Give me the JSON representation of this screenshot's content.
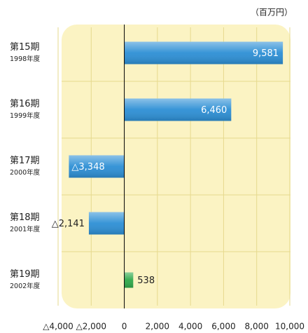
{
  "chart_data": {
    "type": "hbar",
    "unit_label": "（百万円）",
    "categories": [
      "第15期",
      "第16期",
      "第17期",
      "第18期",
      "第19期"
    ],
    "category_years": [
      "1998年度",
      "1999年度",
      "2000年度",
      "2001年度",
      "2002年度"
    ],
    "values": [
      9581,
      6460,
      -3348,
      -2141,
      538
    ],
    "value_labels": [
      "9,581",
      "6,460",
      "△3,348",
      "△2,141",
      "538"
    ],
    "colors": [
      "#2d8fd5",
      "#2d8fd5",
      "#2d8fd5",
      "#2d8fd5",
      "#2fa84a"
    ],
    "xlim": [
      -4000,
      10000
    ],
    "xticks": [
      {
        "value": -4000,
        "label": "△4,000"
      },
      {
        "value": -2000,
        "label": "△2,000"
      },
      0,
      {
        "value": 2000,
        "label": "2,000"
      },
      {
        "value": 4000,
        "label": "4,000"
      },
      {
        "value": 6000,
        "label": "6,000"
      },
      {
        "value": 8000,
        "label": "8,000"
      },
      {
        "value": 10000,
        "label": "10,000"
      }
    ],
    "grid": true
  }
}
